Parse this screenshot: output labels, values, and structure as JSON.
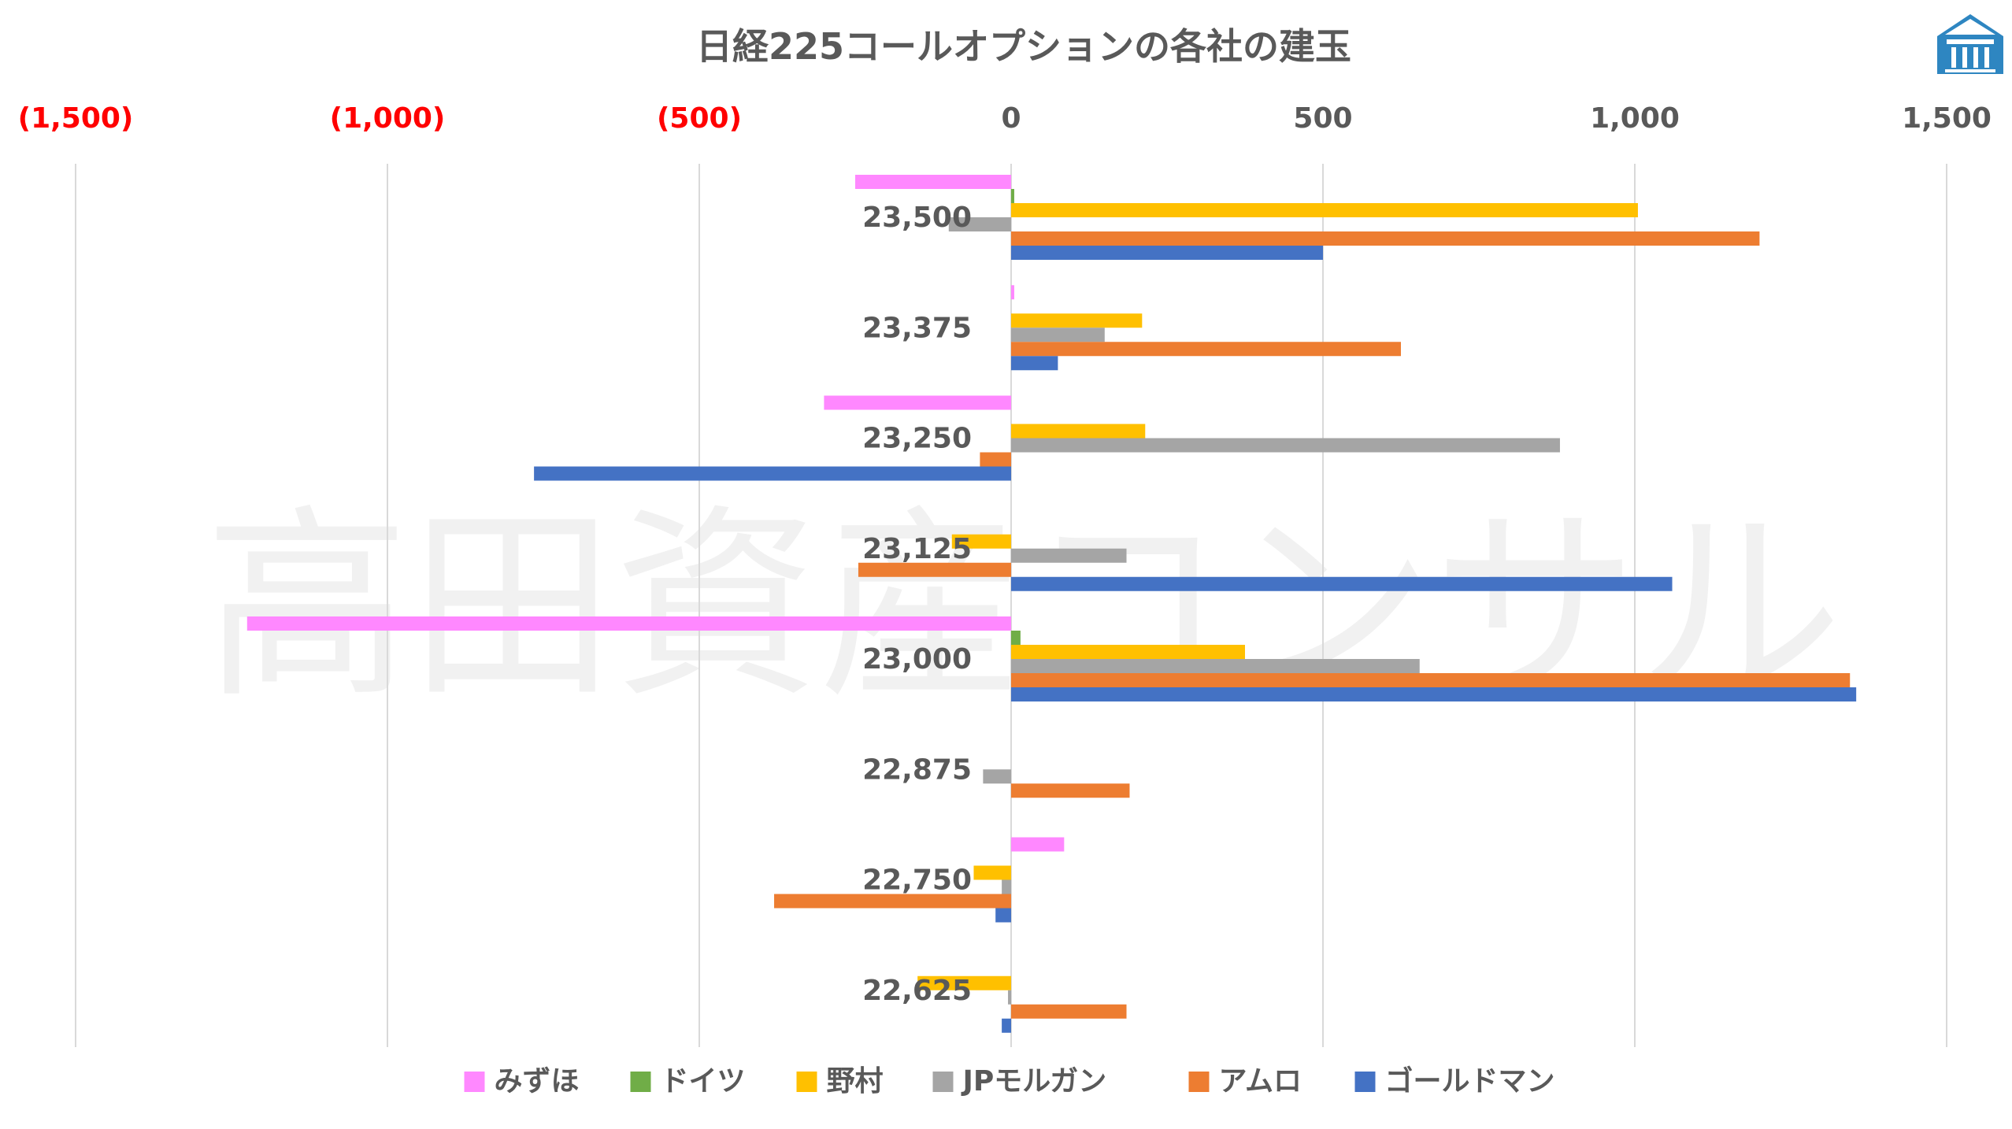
{
  "chart_data": {
    "type": "bar",
    "orientation": "horizontal",
    "title": "日経225コールオプションの各社の建玉",
    "watermark": "高田資産コンサル",
    "categories": [
      "23,500",
      "23,375",
      "23,250",
      "23,125",
      "23,000",
      "22,875",
      "22,750",
      "22,625"
    ],
    "x_ticks": [
      "(1,500)",
      "(1,000)",
      "(500)",
      "0",
      "500",
      "1,000",
      "1,500"
    ],
    "xlim": [
      -1500,
      1500
    ],
    "grid": true,
    "legend_position": "bottom",
    "series": [
      {
        "name": "みずほ",
        "color": "#FF88FF",
        "values": [
          -250,
          5,
          -300,
          0,
          -1225,
          0,
          85,
          0
        ]
      },
      {
        "name": "ドイツ",
        "color": "#70AD47",
        "values": [
          5,
          0,
          0,
          0,
          15,
          0,
          0,
          0
        ]
      },
      {
        "name": "野村",
        "color": "#FFC000",
        "values": [
          1005,
          210,
          215,
          -95,
          375,
          0,
          -60,
          -150
        ]
      },
      {
        "name": "JPモルガン",
        "color": "#A5A5A5",
        "values": [
          -100,
          150,
          880,
          185,
          655,
          -45,
          -15,
          -5
        ]
      },
      {
        "name": "アムロ",
        "color": "#ED7D31",
        "values": [
          1200,
          625,
          -50,
          -245,
          1345,
          190,
          -380,
          185
        ]
      },
      {
        "name": "ゴールドマン",
        "color": "#4472C4",
        "values": [
          500,
          75,
          -765,
          1060,
          1355,
          0,
          -25,
          -15
        ]
      }
    ],
    "colors": {
      "negative_tick": "#FF0000",
      "tick": "#595959",
      "grid": "#D9D9D9",
      "logo": "#2E86C1"
    }
  },
  "logo": {
    "icon": "building-logo-icon"
  }
}
